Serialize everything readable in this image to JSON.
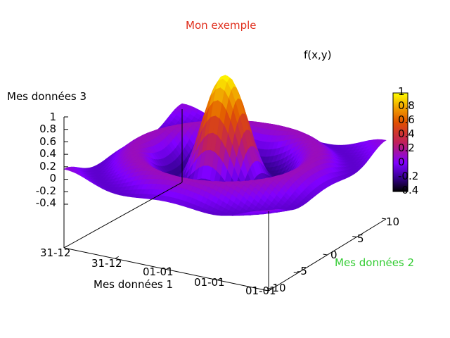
{
  "chart_data": {
    "type": "surface",
    "title": "Mon exemple",
    "title_color": "#e0301e",
    "surface_label": "f(x,y)",
    "xlabel": "Mes données 1",
    "ylabel": "Mes données 2",
    "ylabel_color": "#33cc33",
    "zlabel": "Mes données 3",
    "function": "sin(r)/r",
    "x_ticks": [
      "31-12",
      "31-12",
      "01-01",
      "01-01",
      "01-01"
    ],
    "y_ticks": [
      "-10",
      "-5",
      "0",
      "5",
      "10"
    ],
    "y_range": [
      -10,
      10
    ],
    "z_ticks": [
      "1",
      "0.8",
      "0.6",
      "0.4",
      "0.2",
      "0",
      "-0.2",
      "-0.4"
    ],
    "z_range": [
      -0.4,
      1
    ],
    "colorbar_ticks": [
      "1",
      "0.8",
      "0.6",
      "0.4",
      "0.2",
      "0",
      "-0.2",
      "-0.4"
    ],
    "colorbar_range": [
      -0.4,
      1
    ],
    "palette": [
      "#000000",
      "#3a0099",
      "#8000ff",
      "#c0205a",
      "#e05000",
      "#f0a000",
      "#ffff00"
    ]
  }
}
